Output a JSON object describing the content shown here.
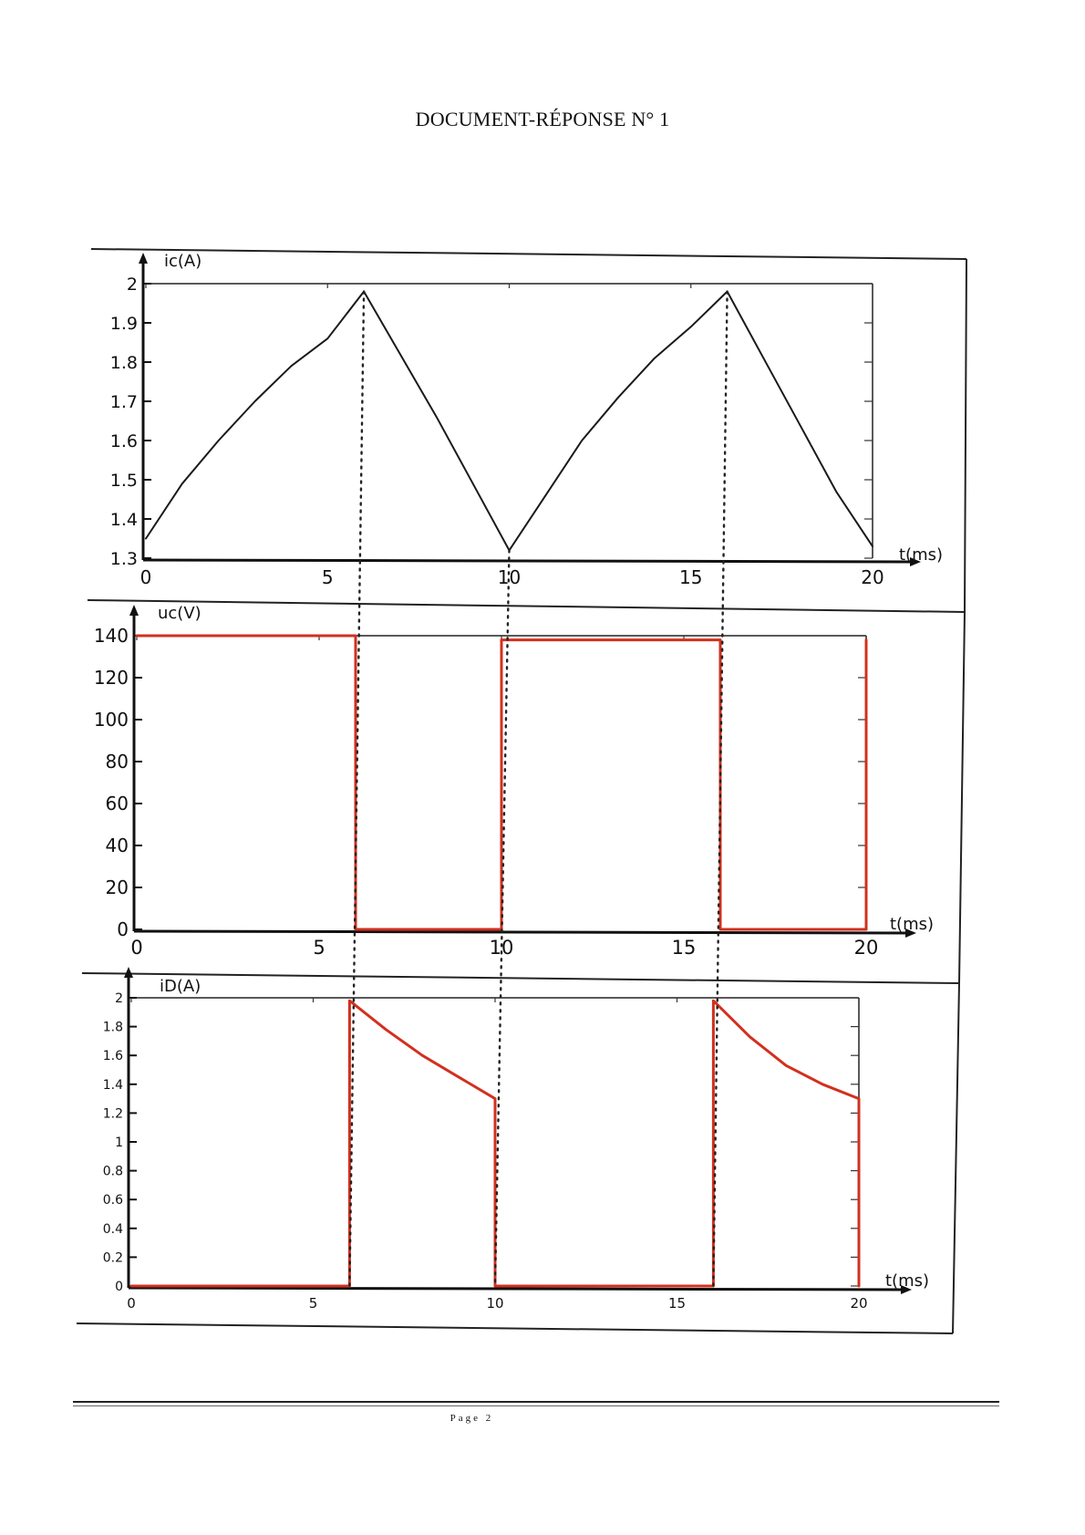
{
  "document": {
    "title": "DOCUMENT-RÉPONSE N° 1",
    "page_label": "Page 2"
  },
  "colors": {
    "printed": "#1a1a1a",
    "handwriting": "#d2301e",
    "guide": "#222222"
  },
  "chart_data": [
    {
      "type": "line",
      "ylabel": "ic(A)",
      "xlabel": "t(ms)",
      "xlim": [
        0,
        20
      ],
      "ylim": [
        1.3,
        2
      ],
      "x_ticks": [
        "0",
        "5",
        "10",
        "15",
        "20"
      ],
      "y_ticks": [
        "2",
        "1.9",
        "1.8",
        "1.7",
        "1.6",
        "1.5",
        "1.4",
        "1.3"
      ],
      "series": [
        {
          "x": [
            0,
            1,
            2,
            3,
            4,
            5,
            6,
            7,
            8,
            9,
            10,
            11,
            12,
            13,
            14,
            15,
            16,
            17,
            18,
            19,
            20
          ],
          "y": [
            1.35,
            1.49,
            1.6,
            1.7,
            1.79,
            1.86,
            1.98,
            1.82,
            1.66,
            1.49,
            1.32,
            1.46,
            1.6,
            1.71,
            1.81,
            1.89,
            1.98,
            1.81,
            1.64,
            1.47,
            1.33
          ]
        }
      ]
    },
    {
      "type": "line",
      "ylabel": "uc(V)",
      "xlabel": "t(ms)",
      "xlim": [
        0,
        20
      ],
      "ylim": [
        0,
        140
      ],
      "x_ticks": [
        "0",
        "5",
        "10",
        "15",
        "20"
      ],
      "y_ticks": [
        "140",
        "120",
        "100",
        "80",
        "60",
        "40",
        "20",
        "0"
      ],
      "series": [
        {
          "x": [
            0,
            6,
            6,
            10,
            10,
            16,
            16,
            20,
            20
          ],
          "y": [
            140,
            140,
            0,
            0,
            138,
            138,
            0,
            0,
            138
          ]
        }
      ]
    },
    {
      "type": "line",
      "ylabel": "iD(A)",
      "xlabel": "t(ms)",
      "xlim": [
        0,
        20
      ],
      "ylim": [
        0,
        2
      ],
      "x_ticks": [
        "0",
        "5",
        "10",
        "15",
        "20"
      ],
      "y_ticks": [
        "2",
        "1.8",
        "1.6",
        "1.4",
        "1.2",
        "1",
        "0.8",
        "0.6",
        "0.4",
        "0.2",
        "0"
      ],
      "series": [
        {
          "x": [
            0,
            6,
            6,
            7,
            8,
            9,
            10,
            10,
            16,
            16,
            17,
            18,
            19,
            20,
            20
          ],
          "y": [
            0,
            0,
            1.98,
            1.78,
            1.6,
            1.45,
            1.3,
            0,
            0,
            1.98,
            1.73,
            1.53,
            1.4,
            1.3,
            0
          ]
        }
      ]
    }
  ]
}
